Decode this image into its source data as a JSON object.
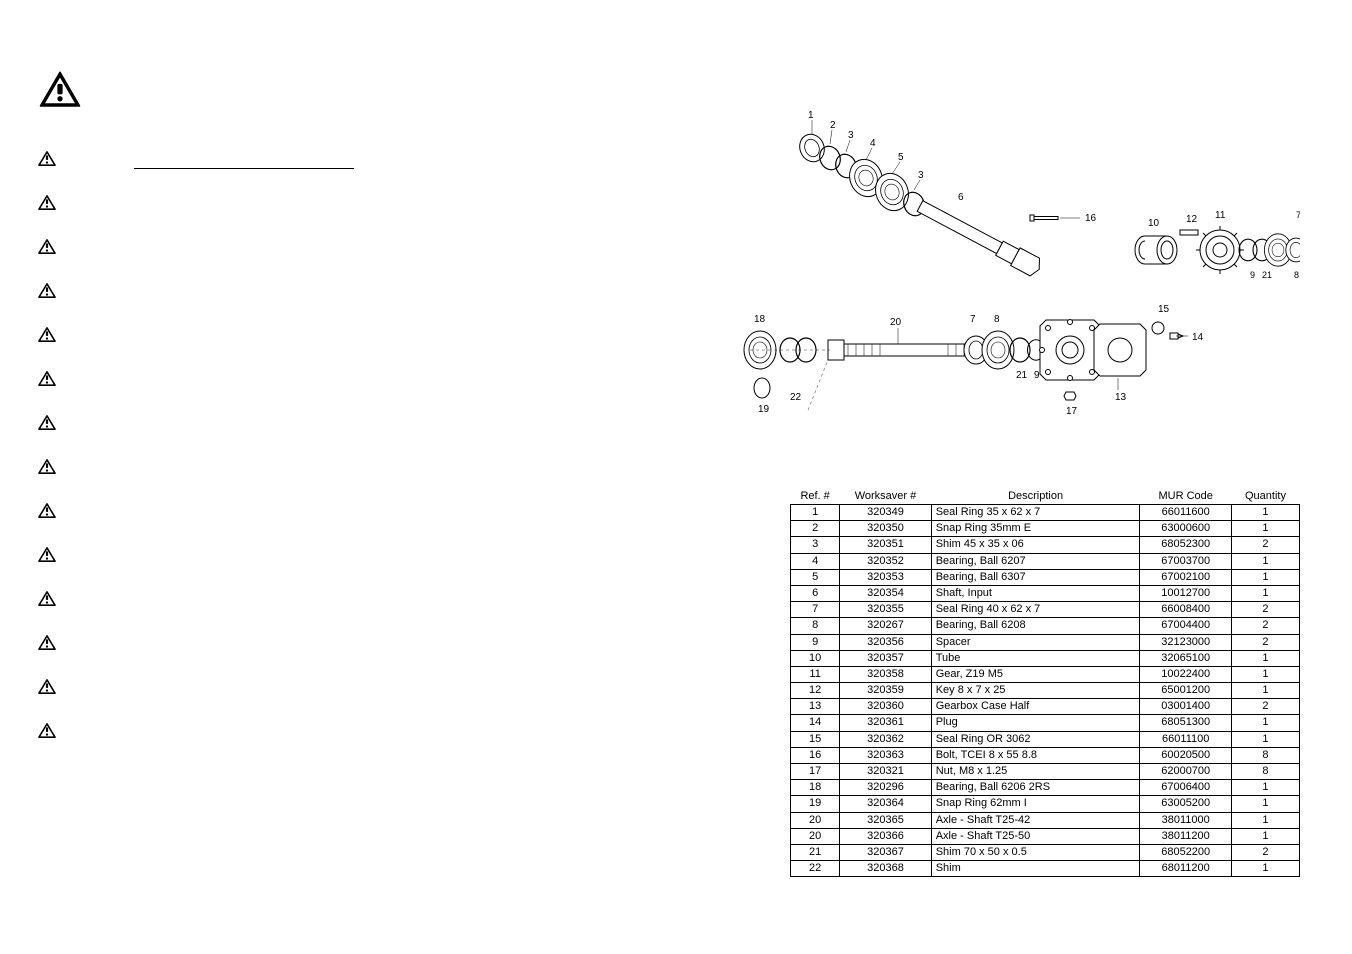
{
  "table": {
    "headers": {
      "ref": "Ref. #",
      "worksaver": "Worksaver #",
      "description": "Description",
      "mur": "MUR Code",
      "quantity": "Quantity"
    },
    "rows": [
      {
        "ref": "1",
        "ws": "320349",
        "desc": "Seal Ring 35 x 62 x 7",
        "mur": "66011600",
        "qty": "1"
      },
      {
        "ref": "2",
        "ws": "320350",
        "desc": "Snap Ring 35mm E",
        "mur": "63000600",
        "qty": "1"
      },
      {
        "ref": "3",
        "ws": "320351",
        "desc": "Shim 45 x 35 x 06",
        "mur": "68052300",
        "qty": "2"
      },
      {
        "ref": "4",
        "ws": "320352",
        "desc": "Bearing, Ball 6207",
        "mur": "67003700",
        "qty": "1"
      },
      {
        "ref": "5",
        "ws": "320353",
        "desc": "Bearing, Ball 6307",
        "mur": "67002100",
        "qty": "1"
      },
      {
        "ref": "6",
        "ws": "320354",
        "desc": "Shaft, Input",
        "mur": "10012700",
        "qty": "1"
      },
      {
        "ref": "7",
        "ws": "320355",
        "desc": "Seal Ring 40 x 62 x 7",
        "mur": "66008400",
        "qty": "2"
      },
      {
        "ref": "8",
        "ws": "320267",
        "desc": "Bearing, Ball 6208",
        "mur": "67004400",
        "qty": "2"
      },
      {
        "ref": "9",
        "ws": "320356",
        "desc": "Spacer",
        "mur": "32123000",
        "qty": "2"
      },
      {
        "ref": "10",
        "ws": "320357",
        "desc": "Tube",
        "mur": "32065100",
        "qty": "1"
      },
      {
        "ref": "11",
        "ws": "320358",
        "desc": "Gear, Z19 M5",
        "mur": "10022400",
        "qty": "1"
      },
      {
        "ref": "12",
        "ws": "320359",
        "desc": "Key 8 x 7 x 25",
        "mur": "65001200",
        "qty": "1"
      },
      {
        "ref": "13",
        "ws": "320360",
        "desc": "Gearbox Case Half",
        "mur": "03001400",
        "qty": "2"
      },
      {
        "ref": "14",
        "ws": "320361",
        "desc": "Plug",
        "mur": "68051300",
        "qty": "1"
      },
      {
        "ref": "15",
        "ws": "320362",
        "desc": "Seal Ring OR 3062",
        "mur": "66011100",
        "qty": "1"
      },
      {
        "ref": "16",
        "ws": "320363",
        "desc": "Bolt, TCEI 8 x 55 8.8",
        "mur": "60020500",
        "qty": "8"
      },
      {
        "ref": "17",
        "ws": "320321",
        "desc": "Nut, M8 x 1.25",
        "mur": "62000700",
        "qty": "8"
      },
      {
        "ref": "18",
        "ws": "320296",
        "desc": "Bearing, Ball 6206 2RS",
        "mur": "67006400",
        "qty": "1"
      },
      {
        "ref": "19",
        "ws": "320364",
        "desc": "Snap Ring 62mm I",
        "mur": "63005200",
        "qty": "1"
      },
      {
        "ref": "20",
        "ws": "320365",
        "desc": "Axle - Shaft T25-42",
        "mur": "38011000",
        "qty": "1"
      },
      {
        "ref": "20",
        "ws": "320366",
        "desc": "Axle - Shaft T25-50",
        "mur": "38011200",
        "qty": "1"
      },
      {
        "ref": "21",
        "ws": "320367",
        "desc": "Shim 70 x 50 x 0.5",
        "mur": "68052200",
        "qty": "2"
      },
      {
        "ref": "22",
        "ws": "320368",
        "desc": "Shim",
        "mur": "68011200",
        "qty": "1"
      }
    ]
  },
  "diagram": {
    "callouts": [
      "1",
      "2",
      "3",
      "4",
      "5",
      "3",
      "6",
      "7",
      "8",
      "20",
      "21",
      "9",
      "16",
      "10",
      "12",
      "11",
      "7",
      "9",
      "21",
      "8",
      "15",
      "14",
      "13",
      "17",
      "18",
      "22",
      "19"
    ],
    "colors": {
      "line": "#000000",
      "fill": "#ffffff",
      "light": "#e8e8e8"
    }
  },
  "warnings": {
    "count": 14,
    "gap_after": 12
  }
}
